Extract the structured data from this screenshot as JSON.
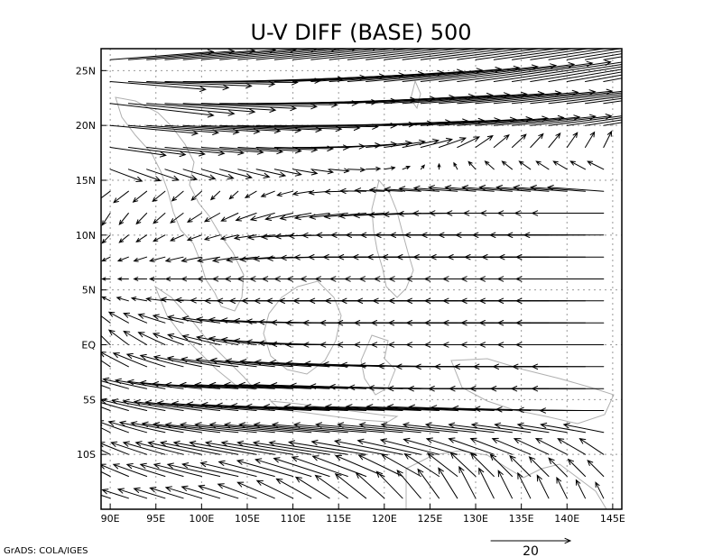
{
  "chart_data": {
    "type": "vector",
    "title": "U-V DIFF (BASE) 500",
    "xlabel": "",
    "ylabel": "",
    "xlim": [
      89,
      146
    ],
    "ylim": [
      -15,
      27
    ],
    "x_ticks": [
      {
        "value": 90,
        "label": "90E"
      },
      {
        "value": 95,
        "label": "95E"
      },
      {
        "value": 100,
        "label": "100E"
      },
      {
        "value": 105,
        "label": "105E"
      },
      {
        "value": 110,
        "label": "110E"
      },
      {
        "value": 115,
        "label": "115E"
      },
      {
        "value": 120,
        "label": "120E"
      },
      {
        "value": 125,
        "label": "125E"
      },
      {
        "value": 130,
        "label": "130E"
      },
      {
        "value": 135,
        "label": "135E"
      },
      {
        "value": 140,
        "label": "140E"
      },
      {
        "value": 145,
        "label": "145E"
      }
    ],
    "y_ticks": [
      {
        "value": 25,
        "label": "25N"
      },
      {
        "value": 20,
        "label": "20N"
      },
      {
        "value": 15,
        "label": "15N"
      },
      {
        "value": 10,
        "label": "10N"
      },
      {
        "value": 5,
        "label": "5N"
      },
      {
        "value": 0,
        "label": "EQ"
      },
      {
        "value": -5,
        "label": "5S"
      },
      {
        "value": -10,
        "label": "10S"
      }
    ],
    "grid": true,
    "reference_vector": {
      "value": 20,
      "label": "20"
    },
    "vector_field": {
      "lon_start": 90,
      "lon_step": 2,
      "lon_count": 28,
      "lat_rows": [
        26,
        24,
        22,
        20,
        18,
        16,
        14,
        12,
        10,
        8,
        6,
        4,
        2,
        0,
        -2,
        -4,
        -6,
        -8,
        -10,
        -12,
        -14
      ],
      "row_profiles": [
        {
          "lat": 26,
          "u": [
            26,
            30,
            34,
            36,
            36
          ],
          "v": [
            2,
            3,
            4,
            5,
            6
          ]
        },
        {
          "lat": 24,
          "u": [
            24,
            32,
            34,
            34,
            32
          ],
          "v": [
            -2,
            1,
            3,
            5,
            6
          ]
        },
        {
          "lat": 22,
          "u": [
            26,
            30,
            32,
            30,
            28
          ],
          "v": [
            -3,
            0,
            2,
            3,
            4
          ]
        },
        {
          "lat": 20,
          "u": [
            22,
            26,
            26,
            22,
            18
          ],
          "v": [
            -2,
            -1,
            1,
            2,
            3
          ]
        },
        {
          "lat": 18,
          "u": [
            14,
            16,
            12,
            4,
            2
          ],
          "v": [
            -2,
            -1,
            1,
            3,
            4
          ]
        },
        {
          "lat": 16,
          "u": [
            8,
            8,
            4,
            -2,
            -4
          ],
          "v": [
            -3,
            -2,
            0,
            2,
            2
          ]
        },
        {
          "lat": 14,
          "u": [
            -4,
            -2,
            -6,
            -12,
            -14
          ],
          "v": [
            -3,
            -2,
            0,
            1,
            1
          ]
        },
        {
          "lat": 12,
          "u": [
            -2,
            -4,
            -10,
            -16,
            -18
          ],
          "v": [
            -3,
            -2,
            -1,
            0,
            0
          ]
        },
        {
          "lat": 10,
          "u": [
            -2,
            -4,
            -12,
            -18,
            -20
          ],
          "v": [
            -2,
            -1,
            0,
            0,
            0
          ]
        },
        {
          "lat": 8,
          "u": [
            -2,
            -6,
            -14,
            -20,
            -22
          ],
          "v": [
            -1,
            -1,
            0,
            0,
            0
          ]
        },
        {
          "lat": 6,
          "u": [
            -2,
            -6,
            -16,
            -22,
            -22
          ],
          "v": [
            0,
            0,
            0,
            0,
            0
          ]
        },
        {
          "lat": 4,
          "u": [
            -2,
            -8,
            -18,
            -22,
            -22
          ],
          "v": [
            1,
            0,
            0,
            0,
            0
          ]
        },
        {
          "lat": 2,
          "u": [
            -4,
            -10,
            -20,
            -22,
            -22
          ],
          "v": [
            3,
            1,
            0,
            0,
            0
          ]
        },
        {
          "lat": 0,
          "u": [
            -4,
            -10,
            -20,
            -22,
            -22
          ],
          "v": [
            4,
            2,
            0,
            0,
            0
          ]
        },
        {
          "lat": -2,
          "u": [
            -6,
            -14,
            -20,
            -20,
            -18
          ],
          "v": [
            4,
            2,
            1,
            0,
            0
          ]
        },
        {
          "lat": -4,
          "u": [
            -8,
            -18,
            -24,
            -22,
            -18
          ],
          "v": [
            3,
            1,
            1,
            0,
            0
          ]
        },
        {
          "lat": -6,
          "u": [
            -8,
            -20,
            -26,
            -22,
            -16
          ],
          "v": [
            3,
            2,
            1,
            1,
            0
          ]
        },
        {
          "lat": -8,
          "u": [
            -6,
            -18,
            -24,
            -18,
            -10
          ],
          "v": [
            3,
            2,
            2,
            2,
            2
          ]
        },
        {
          "lat": -10,
          "u": [
            -6,
            -16,
            -20,
            -12,
            -6
          ],
          "v": [
            3,
            3,
            3,
            4,
            4
          ]
        },
        {
          "lat": -12,
          "u": [
            -6,
            -14,
            -14,
            -6,
            -4
          ],
          "v": [
            3,
            3,
            5,
            6,
            4
          ]
        },
        {
          "lat": -14,
          "u": [
            -6,
            -10,
            -8,
            -4,
            -2
          ],
          "v": [
            2,
            3,
            6,
            8,
            4
          ]
        }
      ]
    }
  },
  "footer": {
    "text": "GrADS: COLA/IGES"
  }
}
